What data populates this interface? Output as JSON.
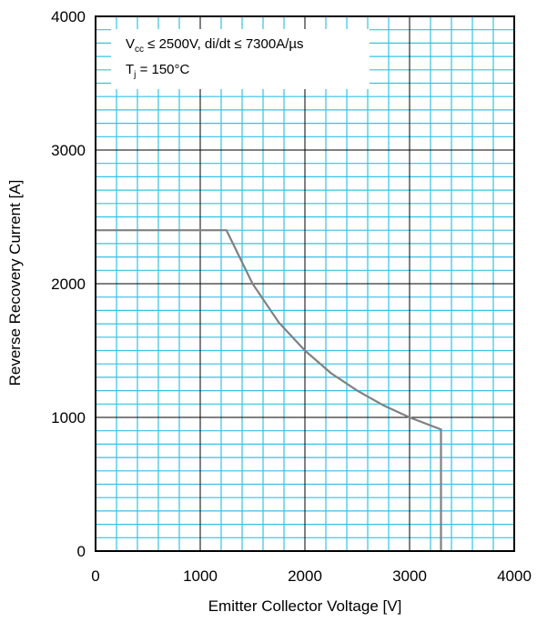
{
  "chart_data": {
    "type": "line",
    "title": "",
    "xlabel": "Emitter Collector Voltage [V]",
    "ylabel": "Reverse Recovery Current [A]",
    "xlim": [
      0,
      4000
    ],
    "ylim": [
      0,
      4000
    ],
    "x_ticks": [
      "0",
      "1000",
      "2000",
      "3000",
      "4000"
    ],
    "y_ticks": [
      "0",
      "1000",
      "2000",
      "3000",
      "4000"
    ],
    "grid": true,
    "annotations": {
      "line1_main": "V",
      "line1_sub": "cc",
      "line1_rest": " ≤ 2500V, di/dt ≤ 7300A/µs",
      "line2_main": "T",
      "line2_sub": "j",
      "line2_rest": " = 150°C"
    },
    "series": [
      {
        "x": [
          0,
          1250,
          1500,
          1750,
          2000,
          2250,
          2500,
          2750,
          3000,
          3300,
          3300
        ],
        "y": [
          2400,
          2400,
          2000,
          1710,
          1500,
          1330,
          1200,
          1090,
          1000,
          910,
          0
        ]
      }
    ],
    "colors": {
      "grid_major": "#000000",
      "grid_minor": "#33c3e6",
      "line": "#808080"
    }
  }
}
